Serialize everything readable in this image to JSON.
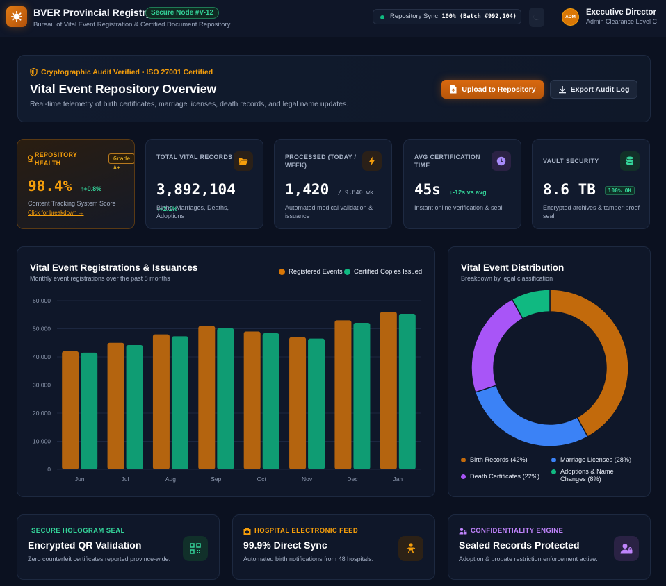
{
  "header": {
    "title": "BVER Provincial Registry",
    "node_badge": "Secure Node #V-12",
    "subtitle": "Bureau of Vital Event Registration & Certified Document Repository",
    "sync_label": "Repository Sync:",
    "sync_value": "100% (Batch #992,104)",
    "avatar_initials": "ADM",
    "user_name": "Executive Director",
    "user_role": "Admin Clearance Level C"
  },
  "hero": {
    "audit": "Cryptographic Audit Verified • ISO 27001 Certified",
    "title": "Vital Event Repository Overview",
    "subtitle": "Real-time telemetry of birth certificates, marriage licenses, death records, and legal name updates.",
    "upload_label": "Upload to Repository",
    "export_label": "Export Audit Log"
  },
  "kpis": {
    "health": {
      "label": "Repository Health",
      "grade": "Grade A+",
      "value": "98.4%",
      "delta": "+0.8%",
      "note": "Content Tracking System Score",
      "link": "Click for breakdown →"
    },
    "records": {
      "label": "Total Vital Records",
      "value": "3,892,104",
      "delta": "+2.1%",
      "note": "Births, Marriages, Deaths, Adoptions"
    },
    "processed": {
      "label": "Processed (Today / Week)",
      "value": "1,420",
      "secondary": "/ 9,840 wk",
      "note": "Automated medical validation & issuance"
    },
    "cert_time": {
      "label": "Avg Certification Time",
      "value": "45s",
      "delta": "-12s vs avg",
      "note": "Instant online verification & seal"
    },
    "vault": {
      "label": "Vault Security",
      "value": "8.6 TB",
      "badge": "100% OK",
      "note": "Encrypted archives & tamper-proof seal"
    }
  },
  "bar_chart": {
    "title": "Vital Event Registrations & Issuances",
    "subtitle": "Monthly event registrations over the past 8 months",
    "colors": {
      "registered": "#b4640f",
      "certified": "#0f9c73"
    }
  },
  "donut_chart": {
    "title": "Vital Event Distribution",
    "subtitle": "Breakdown by legal classification",
    "legend": [
      {
        "label": "Birth Records (42%)",
        "color": "#c26a0c"
      },
      {
        "label": "Marriage Licenses (28%)",
        "color": "#3b82f6"
      },
      {
        "label": "Death Certificates (22%)",
        "color": "#a855f7"
      },
      {
        "label": "Adoptions & Name Changes (8%)",
        "color": "#10b981"
      }
    ]
  },
  "chart_data": [
    {
      "type": "bar",
      "title": "Vital Event Registrations & Issuances",
      "categories": [
        "Jun",
        "Jul",
        "Aug",
        "Sep",
        "Oct",
        "Nov",
        "Dec",
        "Jan"
      ],
      "series": [
        {
          "name": "Registered Events",
          "values": [
            42000,
            45000,
            48000,
            51000,
            49000,
            47000,
            53000,
            56000
          ]
        },
        {
          "name": "Certified Copies Issued",
          "values": [
            41500,
            44200,
            47300,
            50200,
            48400,
            46500,
            52100,
            55300
          ]
        }
      ],
      "ylim": [
        0,
        60000
      ],
      "yticks": [
        "0",
        "10,000",
        "20,000",
        "30,000",
        "40,000",
        "50,000",
        "60,000"
      ],
      "grid": true,
      "legend": "top-right"
    },
    {
      "type": "pie",
      "title": "Vital Event Distribution",
      "labels": [
        "Birth Records",
        "Marriage Licenses",
        "Death Certificates",
        "Adoptions & Name Changes"
      ],
      "values": [
        42,
        28,
        22,
        8
      ],
      "legend": "bottom"
    }
  ],
  "features": [
    {
      "label": "Secure Hologram Seal",
      "title": "Encrypted QR Validation",
      "sub": "Zero counterfeit certificates reported province-wide.",
      "color": "#34d399"
    },
    {
      "label": "Hospital Electronic Feed",
      "title": "99.9% Direct Sync",
      "sub": "Automated birth notifications from 48 hospitals.",
      "color": "#f59e0b"
    },
    {
      "label": "Confidentiality Engine",
      "title": "Sealed Records Protected",
      "sub": "Adoption & probate restriction enforcement active.",
      "color": "#c084fc"
    }
  ]
}
